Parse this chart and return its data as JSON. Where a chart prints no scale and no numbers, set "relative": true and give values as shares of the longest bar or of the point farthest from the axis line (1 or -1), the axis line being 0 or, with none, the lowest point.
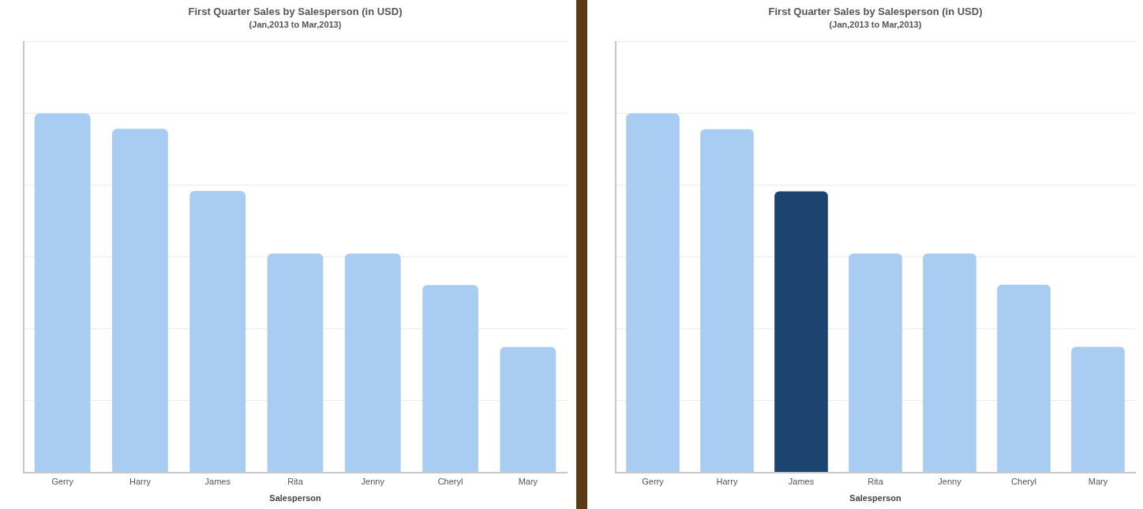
{
  "chart_data": [
    {
      "type": "bar",
      "title": "First Quarter Sales by Salesperson (in USD)",
      "subtitle": "(Jan,2013 to Mar,2013)",
      "xlabel": "Salesperson",
      "categories": [
        "Gerry",
        "Harry",
        "James",
        "Rita",
        "Jenny",
        "Cheryl",
        "Mary"
      ],
      "values": [
        1,
        0.957,
        0.784,
        0.61,
        0.61,
        0.522,
        0.349
      ],
      "colors": [
        "#a9cdf2",
        "#a9cdf2",
        "#a9cdf2",
        "#a9cdf2",
        "#a9cdf2",
        "#a9cdf2",
        "#a9cdf2"
      ],
      "relative": true,
      "grid": "y",
      "legend": false
    },
    {
      "type": "bar",
      "title": "First Quarter Sales by Salesperson (in USD)",
      "subtitle": "(Jan,2013 to Mar,2013)",
      "xlabel": "Salesperson",
      "categories": [
        "Gerry",
        "Harry",
        "James",
        "Rita",
        "Jenny",
        "Cheryl",
        "Mary"
      ],
      "values": [
        1,
        0.956,
        0.783,
        0.61,
        0.61,
        0.523,
        0.35
      ],
      "colors": [
        "#a9cdf2",
        "#a9cdf2",
        "#1d4470",
        "#a9cdf2",
        "#a9cdf2",
        "#a9cdf2",
        "#a9cdf2"
      ],
      "relative": true,
      "grid": "y",
      "legend": false
    }
  ]
}
